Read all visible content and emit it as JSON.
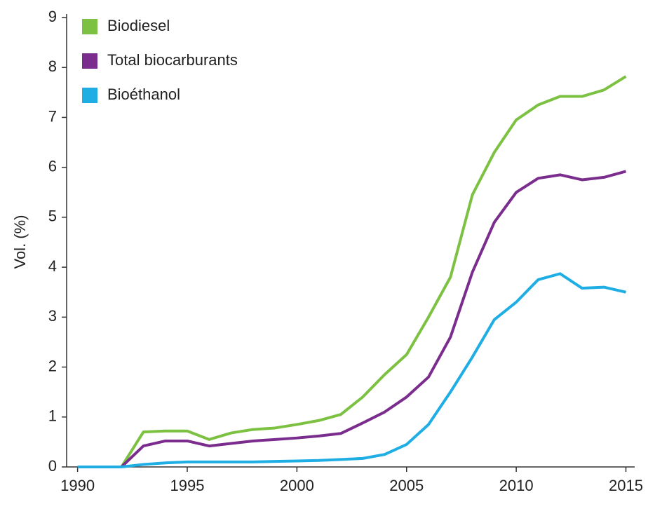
{
  "chart_data": {
    "type": "line",
    "ylabel": "Vol. (%)",
    "x": [
      1990,
      1991,
      1992,
      1993,
      1994,
      1995,
      1996,
      1997,
      1998,
      1999,
      2000,
      2001,
      2002,
      2003,
      2004,
      2005,
      2006,
      2007,
      2008,
      2009,
      2010,
      2011,
      2012,
      2013,
      2014,
      2015
    ],
    "series": [
      {
        "name": "Biodiesel",
        "color": "#7dc142",
        "values": [
          0,
          0,
          0,
          0.7,
          0.72,
          0.72,
          0.55,
          0.68,
          0.75,
          0.78,
          0.85,
          0.93,
          1.05,
          1.4,
          1.85,
          2.25,
          3.0,
          3.8,
          5.45,
          6.3,
          6.95,
          7.25,
          7.42,
          7.42,
          7.55,
          7.82
        ]
      },
      {
        "name": "Total biocarburants",
        "color": "#7b2d8e",
        "values": [
          0,
          0,
          0,
          0.42,
          0.52,
          0.52,
          0.42,
          0.47,
          0.52,
          0.55,
          0.58,
          0.62,
          0.67,
          0.88,
          1.1,
          1.4,
          1.8,
          2.6,
          3.9,
          4.9,
          5.5,
          5.78,
          5.85,
          5.75,
          5.8,
          5.92
        ]
      },
      {
        "name": "Bioéthanol",
        "color": "#1eaee4",
        "values": [
          0,
          0,
          0,
          0.05,
          0.08,
          0.1,
          0.1,
          0.1,
          0.1,
          0.11,
          0.12,
          0.13,
          0.15,
          0.17,
          0.25,
          0.45,
          0.85,
          1.5,
          2.2,
          2.95,
          3.3,
          3.75,
          3.87,
          3.58,
          3.6,
          3.5
        ]
      }
    ],
    "xlim": [
      1989.5,
      2015.4
    ],
    "ylim": [
      0,
      9
    ],
    "xticks": [
      1990,
      1995,
      2000,
      2005,
      2010,
      2015
    ],
    "yticks": [
      0,
      1,
      2,
      3,
      4,
      5,
      6,
      7,
      8,
      9
    ],
    "legend": "upper left"
  }
}
